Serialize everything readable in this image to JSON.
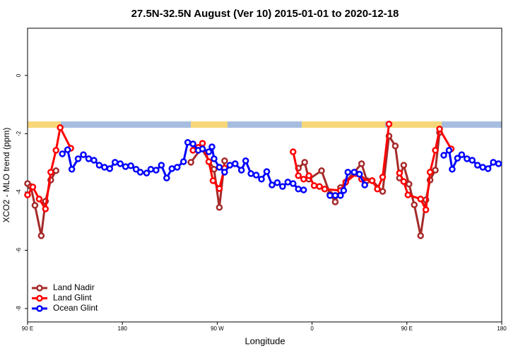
{
  "chart_data": {
    "type": "line",
    "title": "27.5N-32.5N August (Ver 10)   2015-01-01 to 2020-12-18",
    "x_label": "Longitude",
    "y_label": "XCO2 - MLO trend (ppm)",
    "xlim": [
      90,
      540
    ],
    "xticks": [
      {
        "value": 90,
        "label": "90 E"
      },
      180,
      {
        "value": 270,
        "label": "90 W"
      },
      {
        "value": 360,
        "label": "0"
      },
      {
        "value": 450,
        "label": "90 E"
      },
      {
        "value": 540,
        "label": "180"
      }
    ],
    "ylim": [
      -8.46,
      1.62
    ],
    "yticks": [
      0,
      -2,
      -4,
      -6,
      -8
    ],
    "legend": "bottom-left",
    "series": [
      {
        "name": "Land Nadir",
        "color": "#a52a2a",
        "x": [
          90,
          93,
          97,
          103,
          107,
          112,
          117,
          null,
          245,
          255,
          267,
          272,
          277,
          null,
          347,
          353,
          357,
          369,
          377,
          382,
          387,
          407,
          412,
          417,
          427,
          433,
          439,
          443,
          447,
          452,
          457,
          463,
          468,
          472,
          477,
          481
        ],
        "values": [
          -3.71,
          -3.81,
          -4.46,
          -5.5,
          -4.32,
          -3.59,
          -3.27,
          null,
          -2.98,
          -2.5,
          -3.22,
          -4.53,
          -2.93,
          null,
          -3.18,
          -2.98,
          -3.56,
          -3.27,
          -4.07,
          -4.34,
          -3.85,
          -3.03,
          -3.61,
          -3.61,
          -3.98,
          -2.08,
          -2.42,
          -3.52,
          -3.08,
          -3.73,
          -4.44,
          -5.5,
          -4.27,
          -3.59,
          -3.25,
          -1.96
        ]
      },
      {
        "name": "Land Glint",
        "color": "#ff0000",
        "x": [
          90,
          95,
          101,
          107,
          112,
          117,
          121,
          131,
          null,
          247,
          252,
          256,
          262,
          266,
          272,
          277,
          null,
          342,
          347,
          352,
          357,
          362,
          367,
          372,
          387,
          392,
          402,
          407,
          417,
          422,
          427,
          433,
          null,
          443,
          447,
          451,
          463,
          468,
          472,
          477,
          481,
          492
        ],
        "values": [
          -4.1,
          -3.83,
          -4.24,
          -4.58,
          -3.32,
          -2.57,
          -1.79,
          -2.5,
          null,
          -2.57,
          -2.47,
          -2.33,
          -2.96,
          -3.61,
          -3.88,
          -3.18,
          null,
          -2.62,
          -3.44,
          -3.56,
          -3.44,
          -3.78,
          -3.81,
          -3.9,
          -3.95,
          -3.66,
          -3.37,
          -3.56,
          -3.61,
          -3.9,
          -3.49,
          -1.67,
          null,
          -3.35,
          -3.64,
          -4.1,
          -4.24,
          -4.61,
          -3.32,
          -2.57,
          -1.84,
          -2.52
        ]
      },
      {
        "name": "Ocean Glint",
        "color": "#0000ff",
        "x": [
          123,
          128,
          132,
          138,
          143,
          148,
          153,
          158,
          163,
          168,
          173,
          178,
          183,
          188,
          193,
          197,
          203,
          207,
          212,
          217,
          222,
          227,
          232,
          238,
          242,
          247,
          252,
          256,
          262,
          265,
          267,
          272,
          277,
          282,
          287,
          293,
          297,
          302,
          307,
          312,
          317,
          322,
          327,
          332,
          337,
          342,
          347,
          352,
          null,
          377,
          382,
          387,
          390,
          394,
          400,
          405,
          410,
          null,
          485,
          490,
          493,
          498,
          502,
          507,
          512,
          517,
          522,
          527,
          532,
          537
        ],
        "values": [
          -2.69,
          -2.55,
          -3.22,
          -2.86,
          -2.72,
          -2.86,
          -2.91,
          -3.08,
          -3.15,
          -3.2,
          -2.98,
          -3.03,
          -3.13,
          -3.1,
          -3.22,
          -3.32,
          -3.35,
          -3.22,
          -3.25,
          -3.08,
          -3.52,
          -3.2,
          -3.15,
          -2.96,
          -2.3,
          -2.35,
          -2.57,
          -2.52,
          -2.62,
          -2.45,
          -2.86,
          -3.15,
          -3.32,
          -3.08,
          -3.03,
          -3.25,
          -2.93,
          -3.37,
          -3.42,
          -3.56,
          -3.3,
          -3.76,
          -3.68,
          -3.81,
          -3.66,
          -3.71,
          -3.9,
          -3.93,
          null,
          -4.12,
          -4.12,
          -4.12,
          -3.95,
          -3.32,
          -3.32,
          -3.39,
          -3.76,
          null,
          -2.74,
          -2.57,
          -3.22,
          -2.84,
          -2.72,
          -2.86,
          -2.91,
          -3.08,
          -3.15,
          -3.2,
          -2.98,
          -3.03
        ]
      }
    ]
  }
}
